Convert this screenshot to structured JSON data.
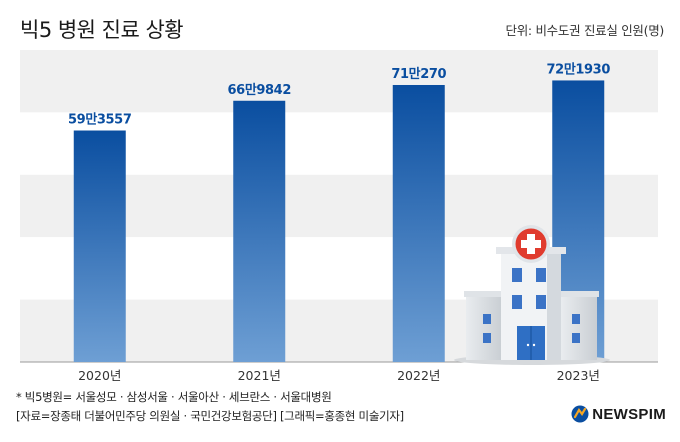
{
  "title": "빅5 병원 진료 상황",
  "unit_label": "단위: 비수도권 진료실 인원(명)",
  "chart_data": {
    "type": "bar",
    "categories": [
      "2020년",
      "2021년",
      "2022년",
      "2023년"
    ],
    "values": [
      593557,
      669842,
      710270,
      721930
    ],
    "value_labels": [
      "59만3557",
      "66만9842",
      "71만270",
      "72만1930"
    ],
    "ylim": [
      0,
      800000
    ],
    "grid": "horizontal bands",
    "bar_color_top": "#0a4ea0",
    "bar_color_bottom": "#6e9fd4",
    "label_color": "#0a4ea0"
  },
  "footnotes": [
    "* 빅5병원= 서울성모 · 삼성서울 · 서울아산 · 세브란스 · 서울대병원",
    "[자료=장종태 더불어민주당 의원실 · 국민건강보험공단] [그래픽=홍종현 미술기자]"
  ],
  "logo": {
    "text": "NEWSPIM",
    "color": "#0a4ea0",
    "accent": "#f5a623"
  }
}
